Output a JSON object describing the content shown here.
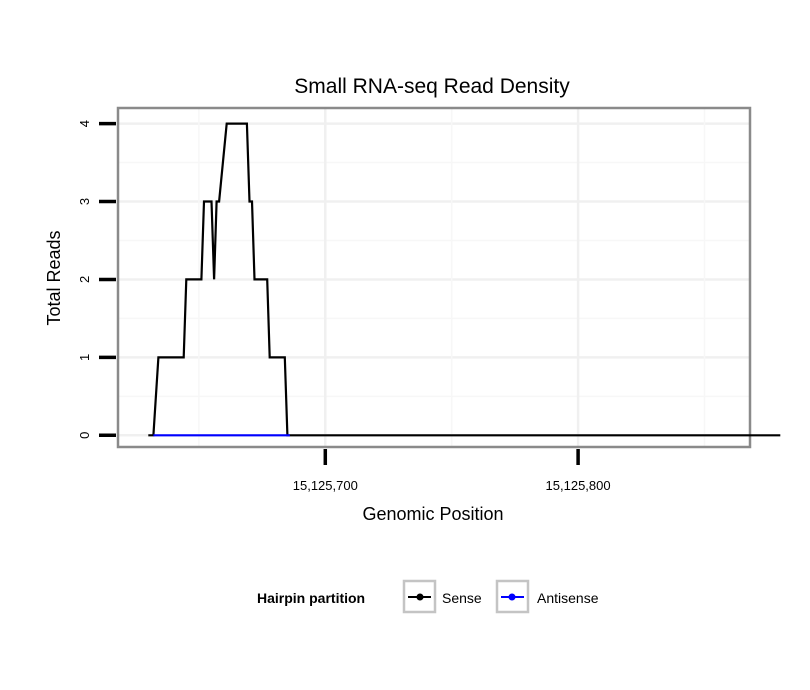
{
  "chart_data": {
    "type": "line",
    "title": "Small RNA-seq Read Density",
    "xlabel": "Genomic Position",
    "ylabel": "Total Reads",
    "xlim": [
      15125618,
      15125868
    ],
    "ylim": [
      -0.15,
      4.2
    ],
    "x_ticks": [
      15125700,
      15125800
    ],
    "x_tick_labels": [
      "15,125,700",
      "15,125,800"
    ],
    "y_ticks": [
      0,
      1,
      2,
      3,
      4
    ],
    "y_tick_labels": [
      "0",
      "1",
      "2",
      "3",
      "4"
    ],
    "grid": true,
    "legend": {
      "title": "Hairpin partition",
      "position": "bottom",
      "entries": [
        "Sense",
        "Antisense"
      ]
    },
    "series": [
      {
        "name": "Sense",
        "color": "#000000",
        "x": [
          15125630,
          15125632,
          15125634,
          15125644,
          15125645,
          15125651,
          15125652,
          15125655,
          15125656,
          15125657,
          15125658,
          15125661,
          15125662,
          15125669,
          15125670,
          15125671,
          15125672,
          15125677,
          15125678,
          15125684,
          15125685,
          15125688,
          15125880
        ],
        "y": [
          0,
          0,
          1,
          1,
          2,
          2,
          3,
          3,
          2,
          3,
          3,
          4,
          4,
          4,
          3,
          3,
          2,
          2,
          1,
          1,
          0,
          0,
          0
        ]
      },
      {
        "name": "Antisense",
        "color": "#0000ff",
        "x": [
          15125632,
          15125686
        ],
        "y": [
          0,
          0
        ]
      }
    ]
  }
}
